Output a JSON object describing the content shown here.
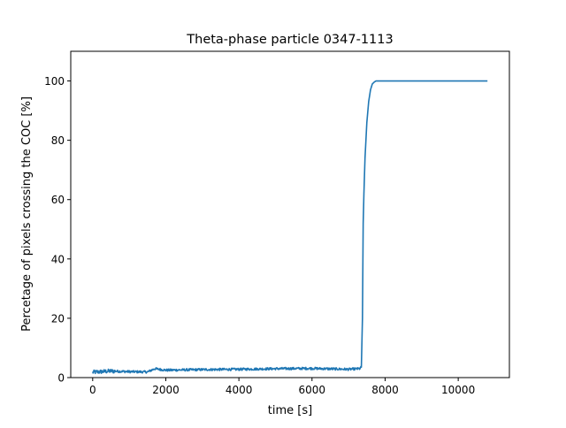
{
  "chart_data": {
    "type": "line",
    "title": "Theta-phase particle 0347-1113",
    "xlabel": "time [s]",
    "ylabel": "Percetage of pixels crossing the COC [%]",
    "xlim": [
      -600,
      11400
    ],
    "ylim": [
      0,
      110
    ],
    "xticks": [
      0,
      2000,
      4000,
      6000,
      8000,
      10000
    ],
    "yticks": [
      0,
      20,
      40,
      60,
      80,
      100
    ],
    "grid": false,
    "legend": "none",
    "series": [
      {
        "color": "#1f77b4",
        "x": [
          0,
          500,
          1000,
          1500,
          1700,
          2000,
          3000,
          4000,
          5000,
          6000,
          7000,
          7300,
          7350,
          7380,
          7400,
          7420,
          7450,
          7500,
          7550,
          7600,
          7650,
          7700,
          7750,
          7800,
          7900,
          8000,
          9000,
          10000,
          10800
        ],
        "y": [
          1.8,
          2.2,
          2.0,
          1.9,
          3.0,
          2.5,
          2.7,
          2.8,
          3.0,
          3.1,
          2.8,
          3.0,
          3.5,
          20,
          52,
          62,
          74,
          86,
          93,
          97,
          99,
          99.6,
          100,
          100,
          100,
          100,
          100,
          100,
          100
        ]
      }
    ]
  }
}
